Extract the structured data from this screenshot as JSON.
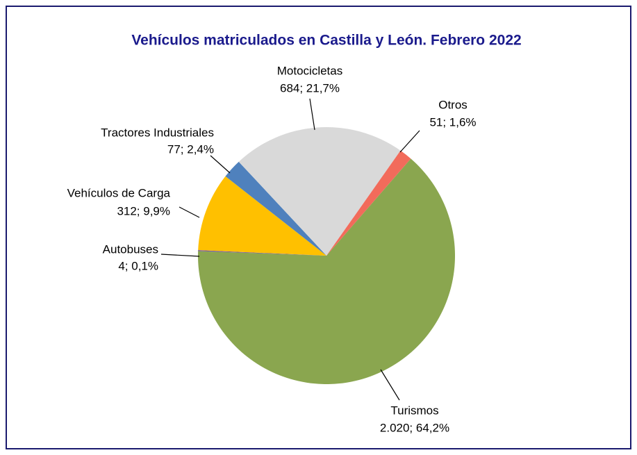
{
  "chart_data": {
    "type": "pie",
    "title": "Vehículos matriculados en Castilla y León. Febrero 2022",
    "categories": [
      "Turismos",
      "Autobuses",
      "Vehículos de Carga",
      "Tractores Industriales",
      "Motocicletas",
      "Otros"
    ],
    "values": [
      2020,
      4,
      312,
      77,
      684,
      51
    ],
    "value_labels": [
      "2.020; 64,2%",
      "4;  0,1%",
      "312;  9,9%",
      "77;  2,4%",
      "684; 21,7%",
      "51;  1,6%"
    ],
    "colors": [
      "#8aa64f",
      "#7a5c9e",
      "#ffc000",
      "#4f81bd",
      "#d9d9d9",
      "#f26b5b"
    ]
  }
}
